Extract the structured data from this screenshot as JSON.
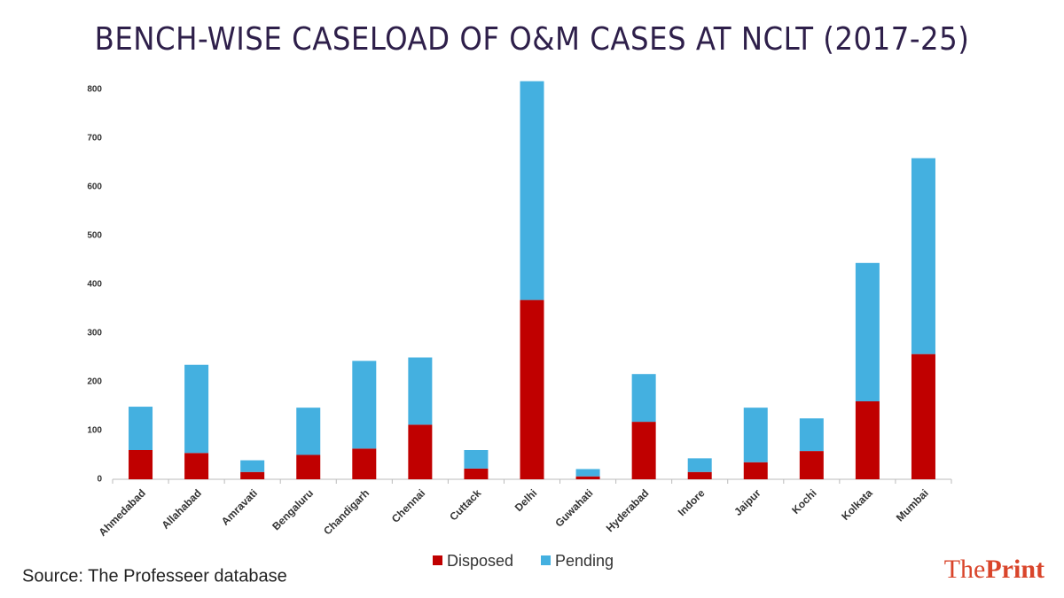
{
  "chart_data": {
    "type": "stacked_bar",
    "title": "BENCH-WISE CASELOAD OF O&M CASES AT NCLT (2017-25)",
    "categories": [
      "Ahmedabad",
      "Allahabad",
      "Amravati",
      "Bengaluru",
      "Chandigarh",
      "Chennai",
      "Cuttack",
      "Delhi",
      "Guwahati",
      "Hyderabad",
      "Indore",
      "Jaipur",
      "Kochi",
      "Kolkata",
      "Mumbai"
    ],
    "series": [
      {
        "name": "Disposed",
        "color": "#c00000",
        "values": [
          60,
          54,
          15,
          50,
          63,
          112,
          22,
          368,
          6,
          118,
          15,
          35,
          58,
          160,
          257
        ]
      },
      {
        "name": "Pending",
        "color": "#44b0e0",
        "values": [
          89,
          181,
          24,
          97,
          180,
          138,
          38,
          449,
          15,
          98,
          28,
          112,
          67,
          284,
          402
        ]
      }
    ],
    "ylim": [
      0,
      820
    ],
    "yticks": [
      0,
      100,
      200,
      300,
      400,
      500,
      600,
      700,
      800
    ],
    "grid": false,
    "legend": "bottom",
    "source": "Source: The Professeer database",
    "brand": [
      "The",
      "Print"
    ]
  }
}
